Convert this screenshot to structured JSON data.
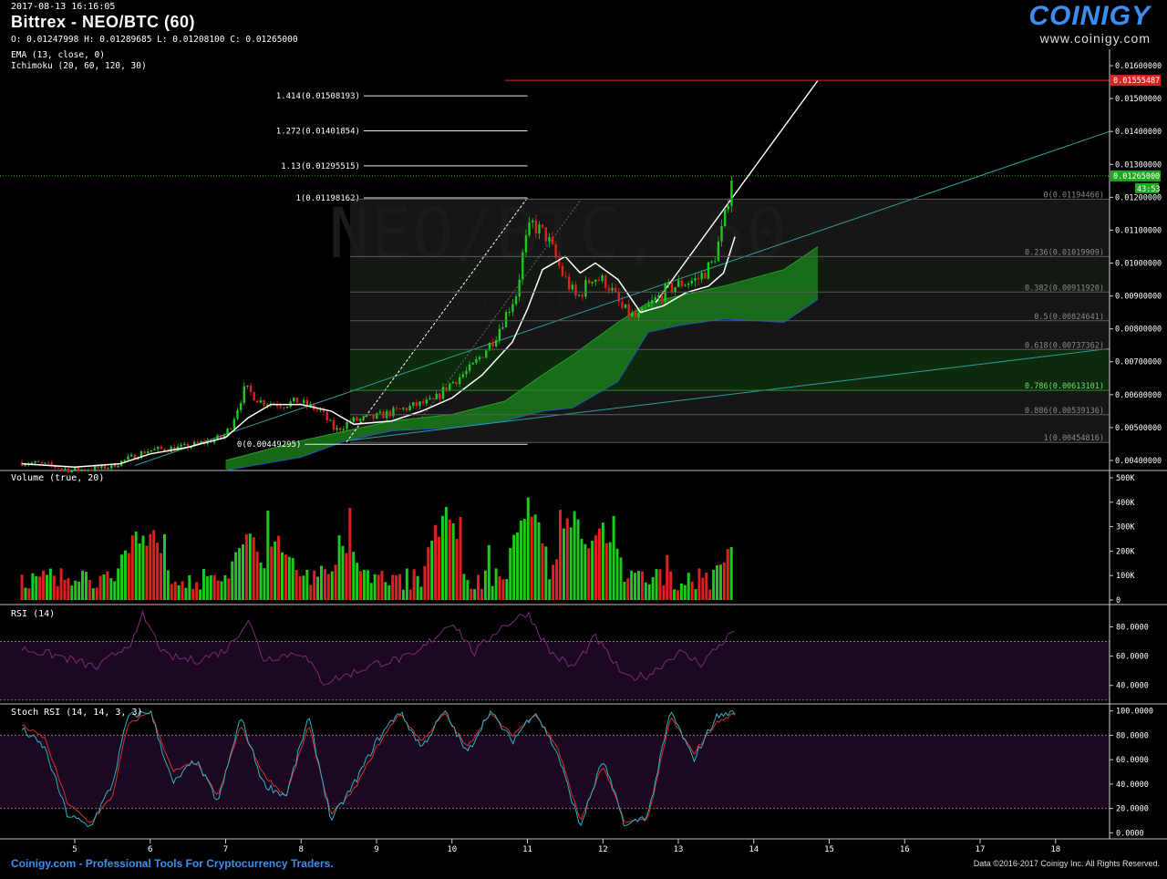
{
  "header": {
    "datetime": "2017-08-13 16:16:05",
    "title": "Bittrex - NEO/BTC (60)",
    "ohlc": "O: 0.01247998 H: 0.01289685 L: 0.01208100 C: 0.01265000",
    "indicators": [
      "EMA (13, close, 0)",
      "Ichimoku (20, 60, 120, 30)"
    ],
    "watermark_main": "NEO/BTC, 60",
    "watermark_sub": "NEO/BTC"
  },
  "logo": {
    "brand": "COINIGY",
    "url": "www.coinigy.com"
  },
  "footer": {
    "left": "Coinigy.com - Professional Tools For Cryptocurrency Traders.",
    "right": "Data ©2016-2017 Coinigy Inc. All Rights Reserved."
  },
  "colors": {
    "bull": "#1ec81e",
    "bear": "#e02020",
    "ema": "#ffffff",
    "cloud": "#1a7a1a",
    "trend": "#2aa0a0",
    "price_tag": "#1ea81e",
    "target_line": "#e02020",
    "rsi_fill": "#1c0820",
    "rsi_line": "#7a2a7a",
    "stoch_k": "#27b3c8",
    "stoch_d": "#d83030"
  },
  "chart_data": [
    {
      "panel": "price",
      "type": "candlestick",
      "x_axis": {
        "tick_labels": [
          "5",
          "6",
          "7",
          "8",
          "9",
          "10",
          "11",
          "12",
          "13",
          "14",
          "15",
          "16",
          "17",
          "18"
        ]
      },
      "y_axis": {
        "range": [
          0.00375,
          0.0165
        ],
        "tick_labels": [
          "0.01600000",
          "0.01500000",
          "0.01400000",
          "0.01300000",
          "0.01200000",
          "0.01100000",
          "0.01000000",
          "0.00900000",
          "0.00800000",
          "0.00700000",
          "0.00600000",
          "0.00500000",
          "0.00400000"
        ],
        "tick_values": [
          0.016,
          0.015,
          0.014,
          0.013,
          0.012,
          0.011,
          0.01,
          0.009,
          0.008,
          0.007,
          0.006,
          0.005,
          0.004
        ]
      },
      "last_price": {
        "label": "0.01265000",
        "value": 0.01265,
        "countdown": "43:53"
      },
      "target_price": {
        "label": "0.01555487",
        "value": 0.01555487
      },
      "fib_extension": [
        {
          "label": "1.414(0.01508193)",
          "value": 0.01508193
        },
        {
          "label": "1.272(0.01401854)",
          "value": 0.01401854
        },
        {
          "label": "1.13(0.01295515)",
          "value": 0.01295515
        },
        {
          "label": "1(0.01198162)",
          "value": 0.01198162
        },
        {
          "label": "0(0.00449295)",
          "value": 0.00449295
        }
      ],
      "fib_retracement": [
        {
          "label": "0(0.01194466)",
          "value": 0.01194466
        },
        {
          "label": "0.236(0.01019909)",
          "value": 0.01019909
        },
        {
          "label": "0.382(0.00911920)",
          "value": 0.0091192
        },
        {
          "label": "0.5(0.00824641)",
          "value": 0.00824641
        },
        {
          "label": "0.618(0.00737362)",
          "value": 0.00737362
        },
        {
          "label": "0.786(0.00613101)",
          "value": 0.00613101
        },
        {
          "label": "0.886(0.00539136)",
          "value": 0.00539136
        },
        {
          "label": "1(0.00454816)",
          "value": 0.00454816
        }
      ],
      "price_path": [
        [
          4.3,
          0.00395
        ],
        [
          4.6,
          0.0039
        ],
        [
          5.0,
          0.0037
        ],
        [
          5.5,
          0.0038
        ],
        [
          6.0,
          0.0043
        ],
        [
          6.5,
          0.0044
        ],
        [
          7.0,
          0.0047
        ],
        [
          7.1,
          0.005
        ],
        [
          7.3,
          0.0062
        ],
        [
          7.5,
          0.0058
        ],
        [
          7.8,
          0.0057
        ],
        [
          8.0,
          0.0058
        ],
        [
          8.3,
          0.0055
        ],
        [
          8.5,
          0.0049
        ],
        [
          8.7,
          0.0052
        ],
        [
          9.0,
          0.0053
        ],
        [
          9.3,
          0.0055
        ],
        [
          9.6,
          0.0057
        ],
        [
          9.8,
          0.0058
        ],
        [
          10.0,
          0.0063
        ],
        [
          10.3,
          0.0068
        ],
        [
          10.6,
          0.0077
        ],
        [
          10.9,
          0.0091
        ],
        [
          11.0,
          0.0105
        ],
        [
          11.1,
          0.0112
        ],
        [
          11.3,
          0.0108
        ],
        [
          11.5,
          0.0097
        ],
        [
          11.7,
          0.0089
        ],
        [
          11.9,
          0.0096
        ],
        [
          12.1,
          0.0094
        ],
        [
          12.3,
          0.0086
        ],
        [
          12.5,
          0.0083
        ],
        [
          12.7,
          0.0088
        ],
        [
          12.9,
          0.0092
        ],
        [
          13.1,
          0.0094
        ],
        [
          13.3,
          0.0095
        ],
        [
          13.5,
          0.01
        ],
        [
          13.65,
          0.0112
        ],
        [
          13.75,
          0.01265
        ]
      ],
      "ema13_path": [
        [
          4.3,
          0.0039
        ],
        [
          5.0,
          0.0038
        ],
        [
          5.6,
          0.0039
        ],
        [
          6.0,
          0.0042
        ],
        [
          6.5,
          0.0044
        ],
        [
          7.0,
          0.0047
        ],
        [
          7.3,
          0.0053
        ],
        [
          7.6,
          0.0057
        ],
        [
          8.0,
          0.0057
        ],
        [
          8.4,
          0.0055
        ],
        [
          8.7,
          0.0051
        ],
        [
          9.2,
          0.0052
        ],
        [
          9.6,
          0.0055
        ],
        [
          10.0,
          0.0059
        ],
        [
          10.4,
          0.0066
        ],
        [
          10.8,
          0.0076
        ],
        [
          11.0,
          0.0086
        ],
        [
          11.2,
          0.0098
        ],
        [
          11.5,
          0.0102
        ],
        [
          11.7,
          0.0097
        ],
        [
          11.9,
          0.01
        ],
        [
          12.2,
          0.0095
        ],
        [
          12.5,
          0.0085
        ],
        [
          12.8,
          0.0087
        ],
        [
          13.1,
          0.0091
        ],
        [
          13.4,
          0.0093
        ],
        [
          13.6,
          0.0097
        ],
        [
          13.75,
          0.0108
        ]
      ],
      "cloud_upper": [
        [
          7.0,
          0.004
        ],
        [
          8.0,
          0.0046
        ],
        [
          8.6,
          0.0049
        ],
        [
          9.2,
          0.0052
        ],
        [
          10.0,
          0.0054
        ],
        [
          10.7,
          0.0058
        ],
        [
          11.2,
          0.0066
        ],
        [
          11.6,
          0.0072
        ],
        [
          12.2,
          0.0082
        ],
        [
          12.6,
          0.0088
        ],
        [
          13.0,
          0.009
        ],
        [
          13.6,
          0.0093
        ],
        [
          14.4,
          0.0098
        ],
        [
          14.85,
          0.0105
        ]
      ],
      "cloud_lower": [
        [
          7.0,
          0.0037
        ],
        [
          8.0,
          0.0041
        ],
        [
          8.6,
          0.0046
        ],
        [
          9.2,
          0.0049
        ],
        [
          10.0,
          0.005
        ],
        [
          10.7,
          0.0052
        ],
        [
          11.2,
          0.0055
        ],
        [
          11.6,
          0.0056
        ],
        [
          12.2,
          0.0064
        ],
        [
          12.6,
          0.0079
        ],
        [
          13.0,
          0.0081
        ],
        [
          13.6,
          0.0083
        ],
        [
          14.4,
          0.0082
        ],
        [
          14.85,
          0.0089
        ]
      ]
    },
    {
      "panel": "volume",
      "type": "bar",
      "title": "Volume (true, 20)",
      "y_axis": {
        "range": [
          0,
          500000
        ],
        "tick_labels": [
          "500K",
          "400K",
          "300K",
          "200K",
          "100K",
          "0"
        ],
        "tick_values": [
          500000,
          400000,
          300000,
          200000,
          100000,
          0
        ]
      },
      "x_range": [
        4.3,
        13.75
      ],
      "peaks": [
        [
          5.8,
          310000
        ],
        [
          6.0,
          340000
        ],
        [
          7.3,
          330000
        ],
        [
          7.7,
          310000
        ],
        [
          8.6,
          260000
        ],
        [
          9.9,
          430000
        ],
        [
          11.0,
          490000
        ],
        [
          11.6,
          410000
        ],
        [
          12.0,
          370000
        ],
        [
          13.7,
          260000
        ]
      ]
    },
    {
      "panel": "rsi",
      "type": "line",
      "title": "RSI (14)",
      "y_axis": {
        "range": [
          28,
          94
        ],
        "tick_labels": [
          "80.0000",
          "60.0000",
          "40.0000"
        ],
        "tick_values": [
          80,
          60,
          40
        ],
        "bands": [
          70,
          30
        ]
      },
      "path": [
        [
          4.3,
          65
        ],
        [
          4.8,
          60
        ],
        [
          5.3,
          52
        ],
        [
          5.8,
          72
        ],
        [
          5.9,
          88
        ],
        [
          6.2,
          60
        ],
        [
          6.6,
          57
        ],
        [
          7.0,
          64
        ],
        [
          7.3,
          85
        ],
        [
          7.5,
          58
        ],
        [
          8.0,
          63
        ],
        [
          8.3,
          42
        ],
        [
          8.6,
          47
        ],
        [
          9.0,
          55
        ],
        [
          9.5,
          60
        ],
        [
          10.0,
          84
        ],
        [
          10.3,
          62
        ],
        [
          10.6,
          78
        ],
        [
          11.0,
          90
        ],
        [
          11.3,
          63
        ],
        [
          11.6,
          52
        ],
        [
          11.9,
          73
        ],
        [
          12.3,
          45
        ],
        [
          12.6,
          47
        ],
        [
          13.0,
          63
        ],
        [
          13.3,
          55
        ],
        [
          13.75,
          78
        ]
      ]
    },
    {
      "panel": "stoch_rsi",
      "type": "line",
      "title": "Stoch RSI (14, 14, 3, 3)",
      "y_axis": {
        "range": [
          -5,
          105
        ],
        "tick_labels": [
          "100.0000",
          "80.0000",
          "60.0000",
          "40.0000",
          "20.0000",
          "0.0000"
        ],
        "tick_values": [
          100,
          80,
          60,
          40,
          20,
          0
        ],
        "bands": [
          80,
          20
        ]
      },
      "k_path": [
        [
          4.3,
          85
        ],
        [
          4.6,
          70
        ],
        [
          4.9,
          15
        ],
        [
          5.2,
          5
        ],
        [
          5.5,
          40
        ],
        [
          5.7,
          95
        ],
        [
          6.0,
          100
        ],
        [
          6.3,
          40
        ],
        [
          6.6,
          60
        ],
        [
          6.9,
          25
        ],
        [
          7.2,
          95
        ],
        [
          7.5,
          40
        ],
        [
          7.8,
          30
        ],
        [
          8.1,
          95
        ],
        [
          8.4,
          10
        ],
        [
          8.7,
          40
        ],
        [
          9.0,
          75
        ],
        [
          9.3,
          100
        ],
        [
          9.6,
          70
        ],
        [
          9.9,
          100
        ],
        [
          10.2,
          65
        ],
        [
          10.5,
          100
        ],
        [
          10.8,
          75
        ],
        [
          11.1,
          100
        ],
        [
          11.4,
          65
        ],
        [
          11.7,
          5
        ],
        [
          12.0,
          60
        ],
        [
          12.3,
          5
        ],
        [
          12.6,
          15
        ],
        [
          12.9,
          100
        ],
        [
          13.2,
          60
        ],
        [
          13.5,
          95
        ],
        [
          13.75,
          100
        ]
      ],
      "d_path": [
        [
          4.3,
          88
        ],
        [
          4.6,
          78
        ],
        [
          4.9,
          25
        ],
        [
          5.2,
          8
        ],
        [
          5.5,
          30
        ],
        [
          5.7,
          88
        ],
        [
          6.0,
          100
        ],
        [
          6.3,
          50
        ],
        [
          6.6,
          58
        ],
        [
          6.9,
          30
        ],
        [
          7.2,
          88
        ],
        [
          7.5,
          48
        ],
        [
          7.8,
          30
        ],
        [
          8.1,
          88
        ],
        [
          8.4,
          15
        ],
        [
          8.7,
          35
        ],
        [
          9.0,
          70
        ],
        [
          9.3,
          98
        ],
        [
          9.6,
          75
        ],
        [
          9.9,
          98
        ],
        [
          10.2,
          70
        ],
        [
          10.5,
          98
        ],
        [
          10.8,
          80
        ],
        [
          11.1,
          98
        ],
        [
          11.4,
          70
        ],
        [
          11.7,
          10
        ],
        [
          12.0,
          55
        ],
        [
          12.3,
          8
        ],
        [
          12.6,
          12
        ],
        [
          12.9,
          95
        ],
        [
          13.2,
          65
        ],
        [
          13.5,
          90
        ],
        [
          13.75,
          98
        ]
      ]
    }
  ]
}
